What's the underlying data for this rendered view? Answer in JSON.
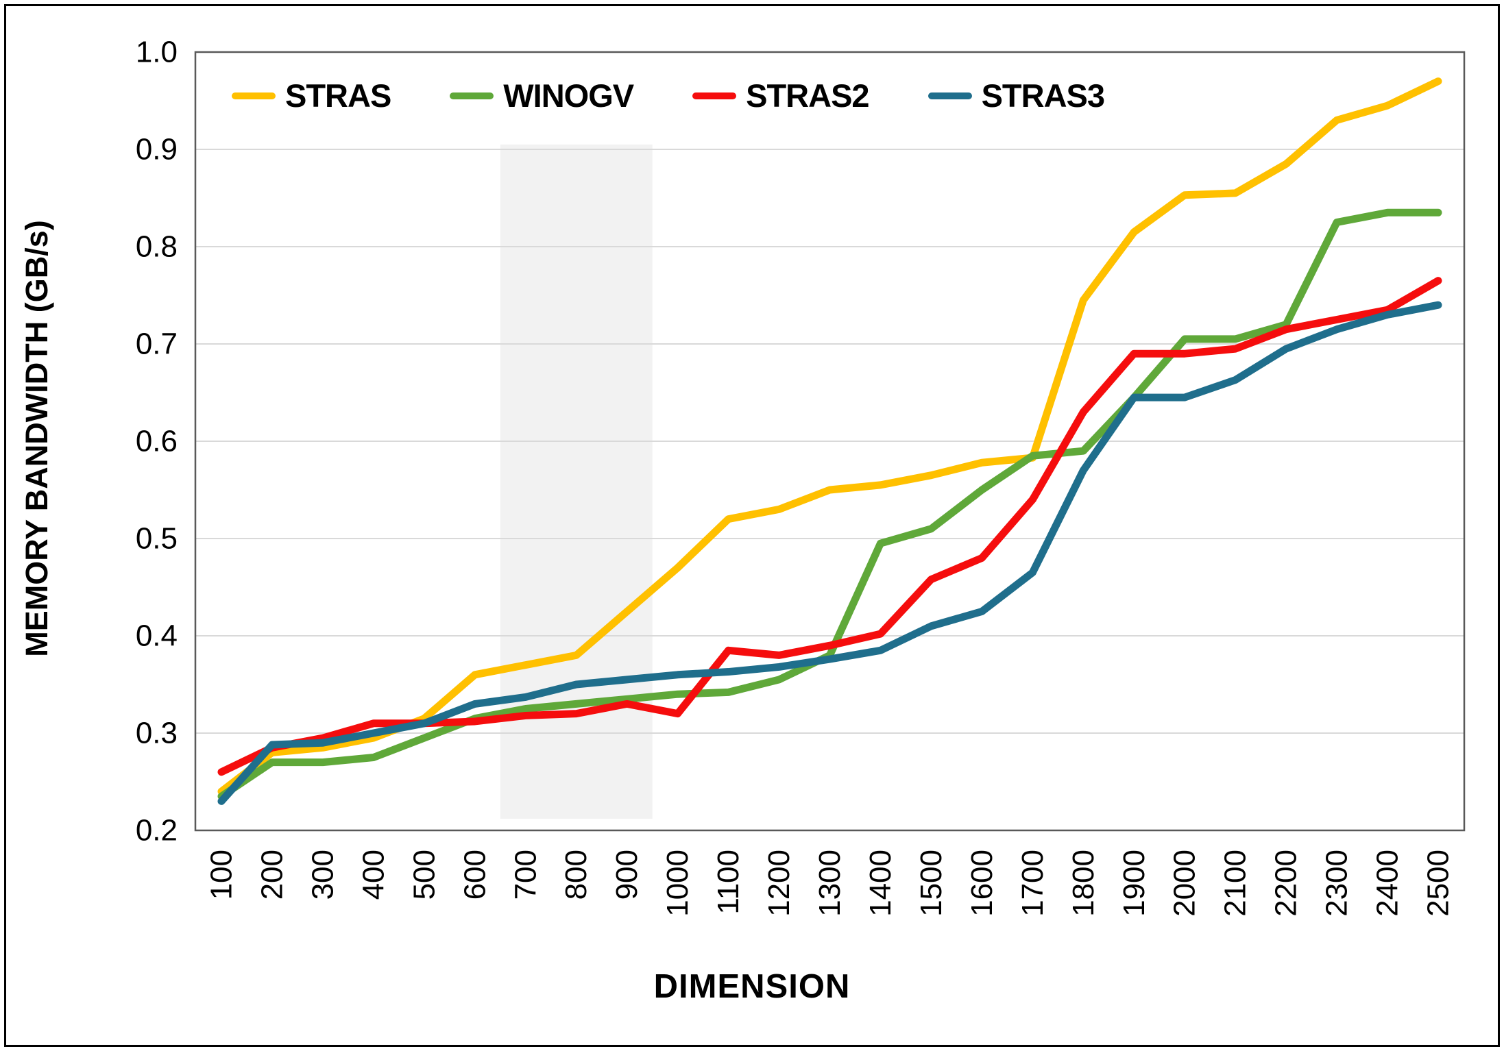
{
  "figure": {
    "background_color": "#ffffff",
    "border_color": "#000000"
  },
  "legend": {
    "items": [
      {
        "label": "STRAS",
        "color": "#FFC000"
      },
      {
        "label": "WINOGV",
        "color": "#5FA839"
      },
      {
        "label": "STRAS2",
        "color": "#F50D0D"
      },
      {
        "label": "STRAS3",
        "color": "#1F6E8C"
      }
    ]
  },
  "chart_data": {
    "type": "line",
    "title": "",
    "xlabel": "DIMENSION",
    "ylabel": "MEMORY BANDWIDTH (GB/s)",
    "x": [
      100,
      200,
      300,
      400,
      500,
      600,
      700,
      800,
      900,
      1000,
      1100,
      1200,
      1300,
      1400,
      1500,
      1600,
      1700,
      1800,
      1900,
      2000,
      2100,
      2200,
      2300,
      2400,
      2500
    ],
    "series": [
      {
        "name": "STRAS",
        "color": "#FFC000",
        "values": [
          0.24,
          0.28,
          0.285,
          0.295,
          0.315,
          0.36,
          0.37,
          0.38,
          0.425,
          0.47,
          0.52,
          0.53,
          0.55,
          0.555,
          0.565,
          0.578,
          0.583,
          0.745,
          0.815,
          0.853,
          0.855,
          0.885,
          0.93,
          0.945,
          0.97
        ]
      },
      {
        "name": "WINOGV",
        "color": "#5FA839",
        "values": [
          0.235,
          0.27,
          0.27,
          0.275,
          0.295,
          0.315,
          0.325,
          0.33,
          0.335,
          0.34,
          0.342,
          0.355,
          0.38,
          0.495,
          0.51,
          0.55,
          0.585,
          0.59,
          0.645,
          0.705,
          0.705,
          0.72,
          0.825,
          0.835,
          0.835
        ]
      },
      {
        "name": "STRAS2",
        "color": "#F50D0D",
        "values": [
          0.26,
          0.285,
          0.295,
          0.31,
          0.31,
          0.312,
          0.318,
          0.32,
          0.33,
          0.32,
          0.385,
          0.38,
          0.39,
          0.402,
          0.458,
          0.48,
          0.54,
          0.63,
          0.69,
          0.69,
          0.695,
          0.715,
          0.725,
          0.735,
          0.765
        ]
      },
      {
        "name": "STRAS3",
        "color": "#1F6E8C",
        "values": [
          0.23,
          0.288,
          0.29,
          0.3,
          0.31,
          0.33,
          0.337,
          0.35,
          0.355,
          0.36,
          0.363,
          0.368,
          0.376,
          0.385,
          0.41,
          0.425,
          0.465,
          0.57,
          0.645,
          0.645,
          0.663,
          0.695,
          0.715,
          0.73,
          0.74
        ]
      }
    ],
    "ylim": [
      0.2,
      1.0
    ],
    "y_ticks": [
      0.2,
      0.3,
      0.4,
      0.5,
      0.6,
      0.7,
      0.8,
      0.9,
      1.0
    ],
    "y_tick_labels": [
      "0.2",
      "0.3",
      "0.4",
      "0.5",
      "0.6",
      "0.7",
      "0.8",
      "0.9",
      "1.0"
    ],
    "grid": "horizontal",
    "gridline_color": "#D9D9D9",
    "frame_color": "#595959",
    "legend_position": "top",
    "highlight_band": {
      "dim_from": 650,
      "dim_to": 950,
      "val_from": 0.212,
      "val_to": 0.905,
      "color": "#F2F2F2"
    }
  }
}
